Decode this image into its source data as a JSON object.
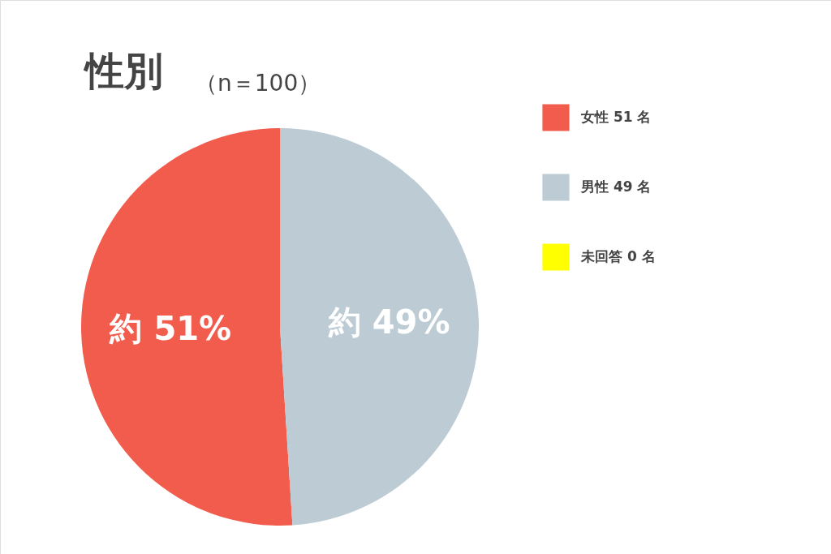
{
  "chart_data": {
    "type": "pie",
    "title": "性別",
    "subtitle": "（n＝100）",
    "categories": [
      "女性 51 名",
      "男性 49 名",
      "未回答 0 名"
    ],
    "values": [
      51,
      49,
      0
    ],
    "colors": [
      "#f25c4d",
      "#bccbd4",
      "#ffff00"
    ],
    "value_labels": [
      "約 51%",
      "約 49%",
      null
    ],
    "legend": "right"
  }
}
